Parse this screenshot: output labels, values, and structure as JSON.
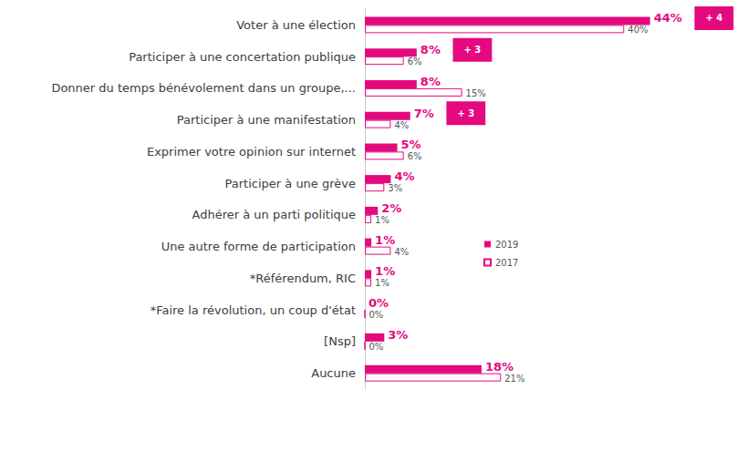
{
  "chart_data": {
    "type": "bar",
    "orientation": "horizontal",
    "categories": [
      "Voter à une élection",
      "Participer à une concertation publique",
      "Donner du temps bénévolement dans un groupe,...",
      "Participer à une manifestation",
      "Exprimer votre opinion sur internet",
      "Participer à une grève",
      "Adhérer à un parti politique",
      "Une autre forme de participation",
      "*Référendum, RIC",
      "*Faire la révolution, un coup d'état",
      "[Nsp]",
      "Aucune"
    ],
    "series": [
      {
        "name": "2019",
        "color": "#e5097f",
        "values": [
          44,
          8,
          8,
          7,
          5,
          4,
          2,
          1,
          1,
          0,
          3,
          18
        ],
        "value_labels": [
          "44%",
          "8%",
          "8%",
          "7%",
          "5%",
          "4%",
          "2%",
          "1%",
          "1%",
          "0%",
          "3%",
          "18%"
        ]
      },
      {
        "name": "2017",
        "color": "#e5097f",
        "values": [
          40,
          6,
          15,
          4,
          6,
          3,
          1,
          4,
          1,
          0,
          0,
          21
        ],
        "value_labels": [
          "40%",
          "6%",
          "15%",
          "4%",
          "6%",
          "3%",
          "1%",
          "4%",
          "1%",
          "0%",
          "0%",
          "21%"
        ]
      }
    ],
    "annotations": [
      {
        "category": "Voter à une élection",
        "text": "+ 4"
      },
      {
        "category": "Participer à une concertation publique",
        "text": "+ 3"
      },
      {
        "category": "Participer à une manifestation",
        "text": "+ 3"
      }
    ],
    "xlim": [
      0,
      56
    ],
    "data_labels": true,
    "tick_labels": "y",
    "grid": false,
    "legend": "right"
  }
}
